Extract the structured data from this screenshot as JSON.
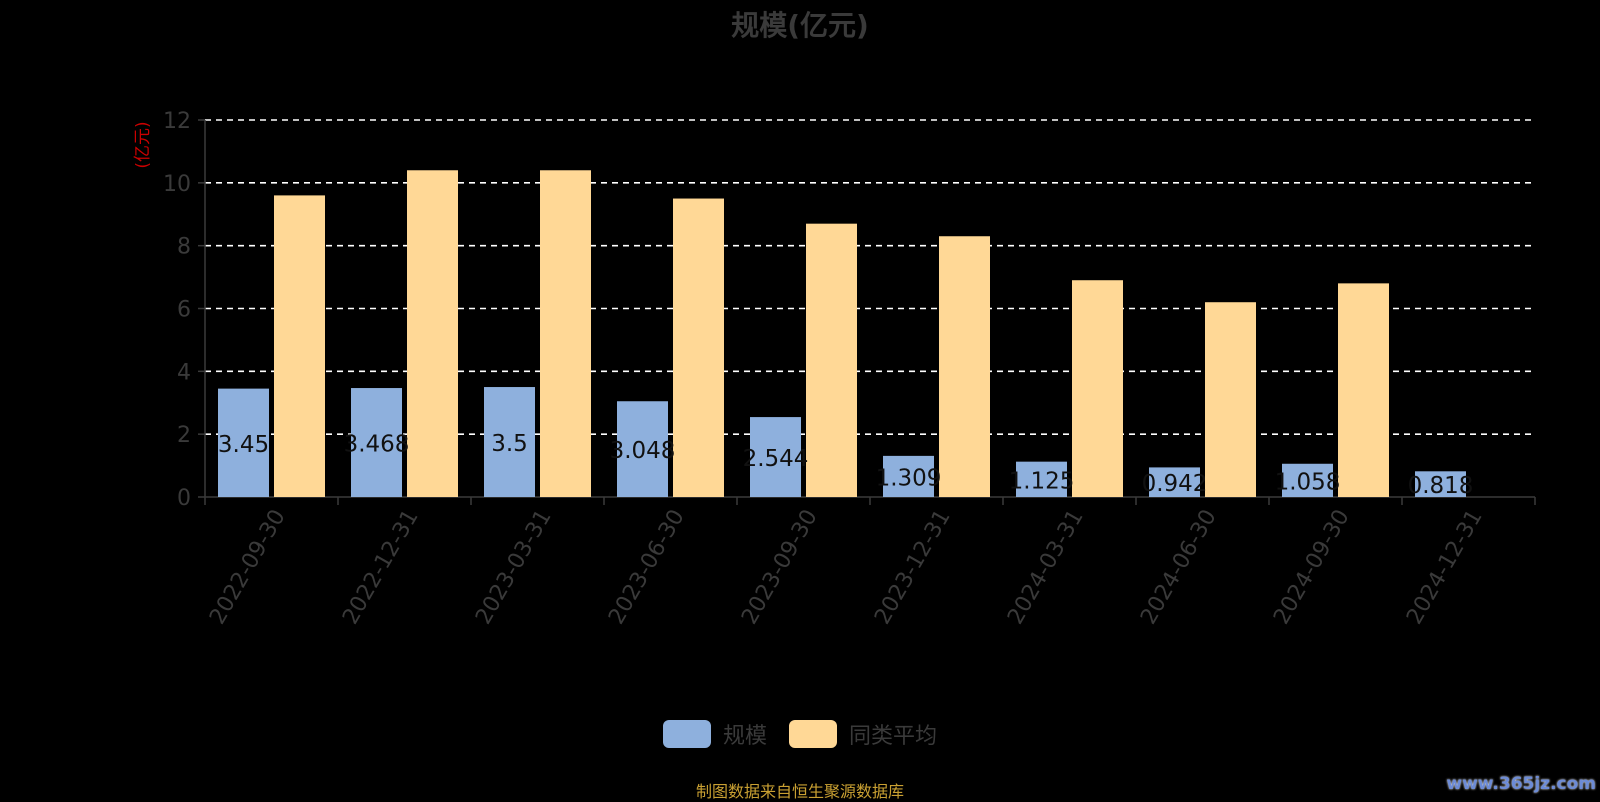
{
  "chart_data": {
    "type": "bar",
    "title": "规模(亿元)",
    "ylabel": "(亿元)",
    "xlabel": "",
    "ylim": [
      0,
      12
    ],
    "yticks": [
      0,
      2,
      4,
      6,
      8,
      10,
      12
    ],
    "grid": true,
    "legend_position": "bottom",
    "categories": [
      "2022-09-30",
      "2022-12-31",
      "2023-03-31",
      "2023-06-30",
      "2023-09-30",
      "2023-12-31",
      "2024-03-31",
      "2024-06-30",
      "2024-09-30",
      "2024-12-31"
    ],
    "series": [
      {
        "name": "规模",
        "color": "#8eb0dd",
        "show_labels": true,
        "values": [
          3.45,
          3.468,
          3.5,
          3.048,
          2.544,
          1.309,
          1.125,
          0.942,
          1.058,
          0.818
        ]
      },
      {
        "name": "同类平均",
        "color": "#ffd896",
        "show_labels": false,
        "values": [
          9.6,
          10.4,
          10.4,
          9.5,
          8.7,
          8.3,
          6.9,
          6.2,
          6.8,
          null
        ]
      }
    ]
  },
  "source_note": "制图数据来自恒生聚源数据库",
  "watermark": "www.365jz.com",
  "colors": {
    "background": "#000000",
    "axis_text": "#3a3a3a",
    "ylabel": "#cc0000",
    "grid": "#ffffff",
    "source": "#c9a032"
  }
}
